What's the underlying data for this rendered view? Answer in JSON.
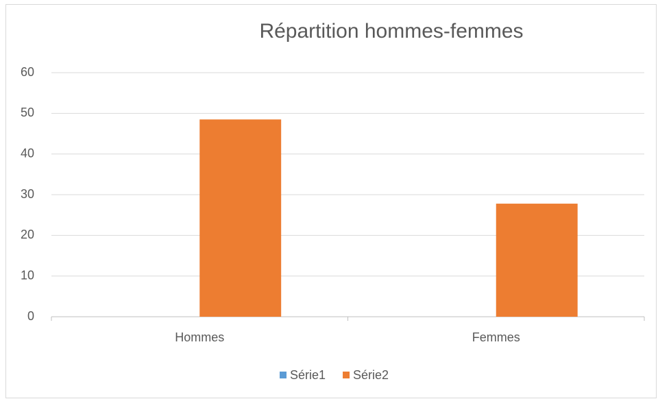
{
  "chart_data": {
    "type": "bar",
    "title": "Répartition hommes-femmes",
    "categories": [
      "Hommes",
      "Femmes"
    ],
    "series": [
      {
        "name": "Série1",
        "color": "#5b9bd5",
        "values": [
          0,
          0
        ]
      },
      {
        "name": "Série2",
        "color": "#ed7d31",
        "values": [
          48.5,
          27.8
        ]
      }
    ],
    "ylim": [
      0,
      60
    ],
    "yticks": [
      0,
      10,
      20,
      30,
      40,
      50,
      60
    ],
    "grid": true,
    "legend": "bottom"
  }
}
